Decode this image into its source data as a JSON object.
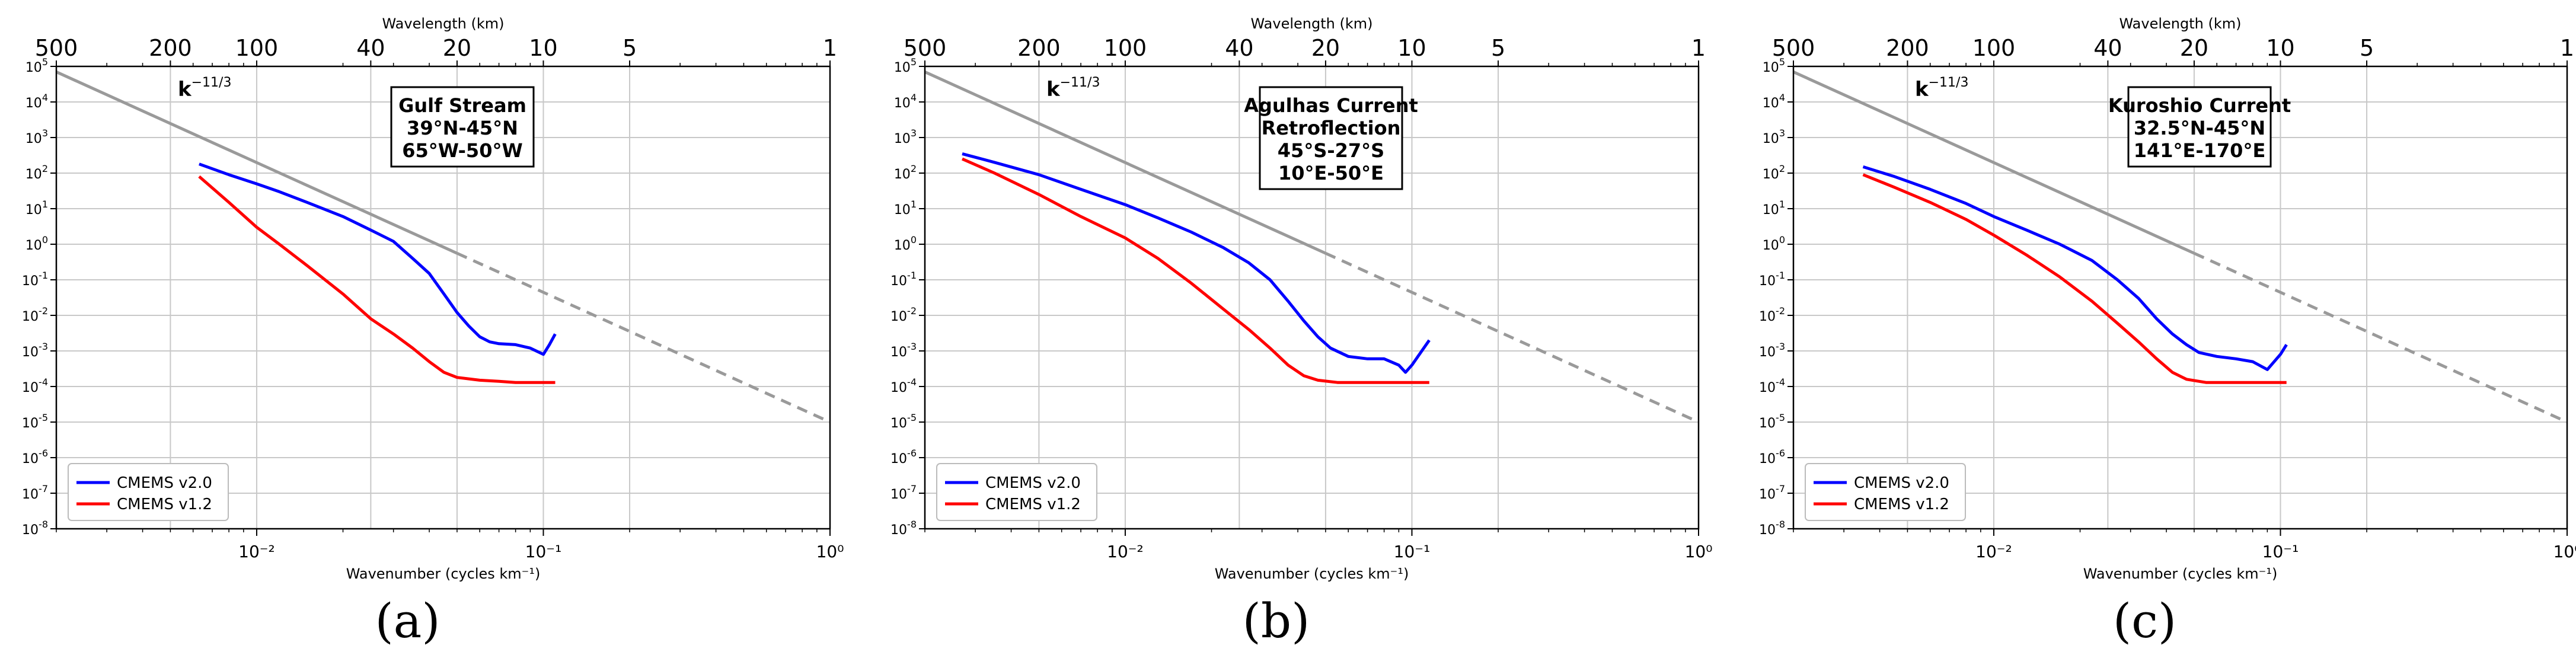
{
  "figure": {
    "top_axis_label": "Wavelength (km)",
    "bottom_axis_label": "Wavenumber (cycles km⁻¹)",
    "slope_label": "k⁻¹¹ᐟ³",
    "slope_base": "k",
    "slope_exp": "−11/3",
    "legend": [
      "CMEMS v2.0",
      "CMEMS v1.2"
    ],
    "colors": {
      "v20": "#0000ff",
      "v12": "#ff0000",
      "slope": "#9a9a9a",
      "grid": "#c8c8c8"
    }
  },
  "chart_data": [
    {
      "type": "line",
      "panel_label": "(a)",
      "region_box": [
        "Gulf Stream",
        "39°N-45°N",
        "65°W-50°W"
      ],
      "xscale": "log",
      "yscale": "log",
      "xlim": [
        0.002,
        1.0
      ],
      "ylim": [
        1e-08,
        100000.0
      ],
      "x_ticks": [
        "10⁻²",
        "10⁻¹",
        "10⁰"
      ],
      "top_ticks": [
        {
          "label": "500",
          "k": 0.002
        },
        {
          "label": "200",
          "k": 0.005
        },
        {
          "label": "100",
          "k": 0.01
        },
        {
          "label": "40",
          "k": 0.025
        },
        {
          "label": "20",
          "k": 0.05
        },
        {
          "label": "10",
          "k": 0.1
        },
        {
          "label": "5",
          "k": 0.2
        },
        {
          "label": "1",
          "k": 1.0
        }
      ],
      "y_tick_exponents": [
        5,
        4,
        3,
        2,
        1,
        0,
        -1,
        -2,
        -3,
        -4,
        -5,
        -6,
        -7,
        -8
      ],
      "xlabel": "Wavenumber (cycles km⁻¹)",
      "grid": true,
      "legend_position": "lower-left",
      "reference_line": {
        "name": "k^-11/3",
        "points": [
          [
            0.002,
            70000
          ],
          [
            1.0,
            1e-05
          ]
        ],
        "solid_until_x": 0.05
      },
      "series": [
        {
          "name": "CMEMS v2.0",
          "color": "#0000ff",
          "x": [
            0.0063,
            0.008,
            0.01,
            0.012,
            0.015,
            0.02,
            0.025,
            0.03,
            0.035,
            0.04,
            0.045,
            0.05,
            0.055,
            0.06,
            0.065,
            0.07,
            0.08,
            0.09,
            0.1,
            0.105,
            0.11
          ],
          "y": [
            180,
            90,
            50,
            30,
            15,
            6,
            2.5,
            1.2,
            0.4,
            0.15,
            0.04,
            0.012,
            0.005,
            0.0025,
            0.0018,
            0.0016,
            0.0015,
            0.0012,
            0.0008,
            0.0015,
            0.003
          ]
        },
        {
          "name": "CMEMS v1.2",
          "color": "#ff0000",
          "x": [
            0.0063,
            0.008,
            0.01,
            0.012,
            0.015,
            0.02,
            0.025,
            0.03,
            0.035,
            0.04,
            0.045,
            0.05,
            0.06,
            0.07,
            0.08,
            0.1,
            0.11
          ],
          "y": [
            80,
            15,
            3,
            1,
            0.25,
            0.04,
            0.008,
            0.003,
            0.0012,
            0.0005,
            0.00025,
            0.00018,
            0.00015,
            0.00014,
            0.00013,
            0.00013,
            0.00013
          ]
        }
      ]
    },
    {
      "type": "line",
      "panel_label": "(b)",
      "region_box": [
        "Agulhas Current",
        "Retroflection",
        "45°S-27°S",
        "10°E-50°E"
      ],
      "xscale": "log",
      "yscale": "log",
      "xlim": [
        0.002,
        1.0
      ],
      "ylim": [
        1e-08,
        100000.0
      ],
      "x_ticks": [
        "10⁻²",
        "10⁻¹",
        "10⁰"
      ],
      "top_ticks": [
        {
          "label": "500",
          "k": 0.002
        },
        {
          "label": "200",
          "k": 0.005
        },
        {
          "label": "100",
          "k": 0.01
        },
        {
          "label": "40",
          "k": 0.025
        },
        {
          "label": "20",
          "k": 0.05
        },
        {
          "label": "10",
          "k": 0.1
        },
        {
          "label": "5",
          "k": 0.2
        },
        {
          "label": "1",
          "k": 1.0
        }
      ],
      "y_tick_exponents": [
        5,
        4,
        3,
        2,
        1,
        0,
        -1,
        -2,
        -3,
        -4,
        -5,
        -6,
        -7,
        -8
      ],
      "xlabel": "Wavenumber (cycles km⁻¹)",
      "grid": true,
      "legend_position": "lower-left",
      "reference_line": {
        "name": "k^-11/3",
        "points": [
          [
            0.002,
            70000
          ],
          [
            1.0,
            1e-05
          ]
        ],
        "solid_until_x": 0.05
      },
      "series": [
        {
          "name": "CMEMS v2.0",
          "color": "#0000ff",
          "x": [
            0.0027,
            0.0035,
            0.005,
            0.007,
            0.01,
            0.013,
            0.017,
            0.022,
            0.027,
            0.032,
            0.037,
            0.042,
            0.047,
            0.052,
            0.06,
            0.07,
            0.08,
            0.09,
            0.095,
            0.1,
            0.11,
            0.115
          ],
          "y": [
            350,
            200,
            90,
            35,
            13,
            5.5,
            2.2,
            0.8,
            0.3,
            0.1,
            0.025,
            0.007,
            0.0025,
            0.0012,
            0.0007,
            0.0006,
            0.0006,
            0.0004,
            0.00025,
            0.0004,
            0.0012,
            0.002
          ]
        },
        {
          "name": "CMEMS v1.2",
          "color": "#ff0000",
          "x": [
            0.0027,
            0.0035,
            0.005,
            0.007,
            0.01,
            0.013,
            0.017,
            0.022,
            0.027,
            0.032,
            0.037,
            0.042,
            0.047,
            0.055,
            0.07,
            0.09,
            0.115
          ],
          "y": [
            250,
            100,
            25,
            6,
            1.5,
            0.4,
            0.08,
            0.015,
            0.004,
            0.0012,
            0.0004,
            0.0002,
            0.00015,
            0.00013,
            0.00013,
            0.00013,
            0.00013
          ]
        }
      ]
    },
    {
      "type": "line",
      "panel_label": "(c)",
      "region_box": [
        "Kuroshio Current",
        "32.5°N-45°N",
        "141°E-170°E"
      ],
      "xscale": "log",
      "yscale": "log",
      "xlim": [
        0.002,
        1.0
      ],
      "ylim": [
        1e-08,
        100000.0
      ],
      "x_ticks": [
        "10⁻²",
        "10⁻¹",
        "10⁰"
      ],
      "top_ticks": [
        {
          "label": "500",
          "k": 0.002
        },
        {
          "label": "200",
          "k": 0.005
        },
        {
          "label": "100",
          "k": 0.01
        },
        {
          "label": "40",
          "k": 0.025
        },
        {
          "label": "20",
          "k": 0.05
        },
        {
          "label": "10",
          "k": 0.1
        },
        {
          "label": "5",
          "k": 0.2
        },
        {
          "label": "1",
          "k": 1.0
        }
      ],
      "y_tick_exponents": [
        5,
        4,
        3,
        2,
        1,
        0,
        -1,
        -2,
        -3,
        -4,
        -5,
        -6,
        -7,
        -8
      ],
      "xlabel": "Wavenumber (cycles km⁻¹)",
      "grid": true,
      "legend_position": "lower-left",
      "reference_line": {
        "name": "k^-11/3",
        "points": [
          [
            0.002,
            70000
          ],
          [
            1.0,
            1e-05
          ]
        ],
        "solid_until_x": 0.05
      },
      "series": [
        {
          "name": "CMEMS v2.0",
          "color": "#0000ff",
          "x": [
            0.0035,
            0.0045,
            0.006,
            0.008,
            0.01,
            0.013,
            0.017,
            0.022,
            0.027,
            0.032,
            0.037,
            0.042,
            0.047,
            0.052,
            0.06,
            0.07,
            0.08,
            0.09,
            0.1,
            0.105
          ],
          "y": [
            150,
            80,
            35,
            14,
            6,
            2.5,
            1,
            0.35,
            0.1,
            0.03,
            0.008,
            0.003,
            0.0015,
            0.0009,
            0.0007,
            0.0006,
            0.0005,
            0.0003,
            0.0008,
            0.0015
          ]
        },
        {
          "name": "CMEMS v1.2",
          "color": "#ff0000",
          "x": [
            0.0035,
            0.0045,
            0.006,
            0.008,
            0.01,
            0.013,
            0.017,
            0.022,
            0.027,
            0.032,
            0.037,
            0.042,
            0.047,
            0.055,
            0.07,
            0.09,
            0.105
          ],
          "y": [
            90,
            40,
            15,
            5,
            1.8,
            0.5,
            0.12,
            0.025,
            0.006,
            0.0018,
            0.0006,
            0.00025,
            0.00016,
            0.00013,
            0.00013,
            0.00013,
            0.00013
          ]
        }
      ]
    }
  ]
}
